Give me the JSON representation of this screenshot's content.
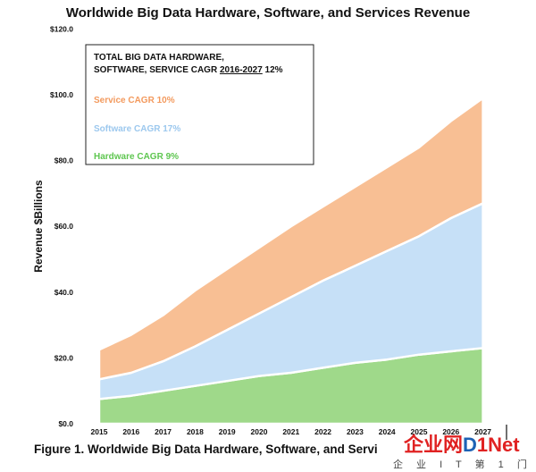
{
  "chart_data": {
    "type": "area",
    "stacked": true,
    "title": "Worldwide Big Data Hardware, Software, and Services Revenue",
    "ylabel": "Revenue $Billions",
    "xlabel": "",
    "ylim": [
      0,
      120
    ],
    "y_ticks": [
      "$0.0",
      "$20.0",
      "$40.0",
      "$60.0",
      "$80.0",
      "$100.0",
      "$120.0"
    ],
    "categories": [
      "2015",
      "2016",
      "2017",
      "2018",
      "2019",
      "2020",
      "2021",
      "2022",
      "2023",
      "2024",
      "2025",
      "2026",
      "2027"
    ],
    "series": [
      {
        "name": "Hardware CAGR 9%",
        "color": "#9fd98a",
        "values": [
          7.5,
          8.5,
          10,
          11.5,
          13,
          14.5,
          15.5,
          17,
          18.5,
          19.5,
          21,
          22,
          23
        ]
      },
      {
        "name": "Software CAGR 17%",
        "color": "#c6e0f7",
        "values": [
          6,
          7,
          9,
          12,
          15.5,
          19,
          23,
          26.5,
          29.5,
          33,
          36,
          40.5,
          44
        ]
      },
      {
        "name": "Service CAGR 10%",
        "color": "#f8bf94",
        "values": [
          9,
          11.5,
          14,
          17,
          18.5,
          20,
          21.5,
          22.5,
          24,
          25.5,
          27,
          29.5,
          32
        ]
      }
    ],
    "legend": {
      "title": "TOTAL BIG DATA HARDWARE, SOFTWARE, SERVICE CAGR 2016-2027 12%",
      "title_line1": "TOTAL BIG DATA HARDWARE,",
      "title_line2_pre": "SOFTWARE, SERVICE CAGR ",
      "title_line2_range": "2016-2027",
      "title_line2_post": " 12%",
      "position": "top-left",
      "items": [
        {
          "label": "Service CAGR 10%",
          "color": "#f39a5e"
        },
        {
          "label": "Software CAGR 17%",
          "color": "#9cc8ee"
        },
        {
          "label": "Hardware CAGR 9%",
          "color": "#5ec650"
        }
      ]
    },
    "grid": false
  },
  "caption": "Figure 1. Worldwide Big Data Hardware, Software, and Servi",
  "watermark": {
    "text1": "企业",
    "text2": "网",
    "text3": "D",
    "text4": "1",
    "text5": "Net",
    "sub": "企 业 I T 第 1 门 户",
    "color_main": "#e02222",
    "color_d": "#1d62b5"
  }
}
